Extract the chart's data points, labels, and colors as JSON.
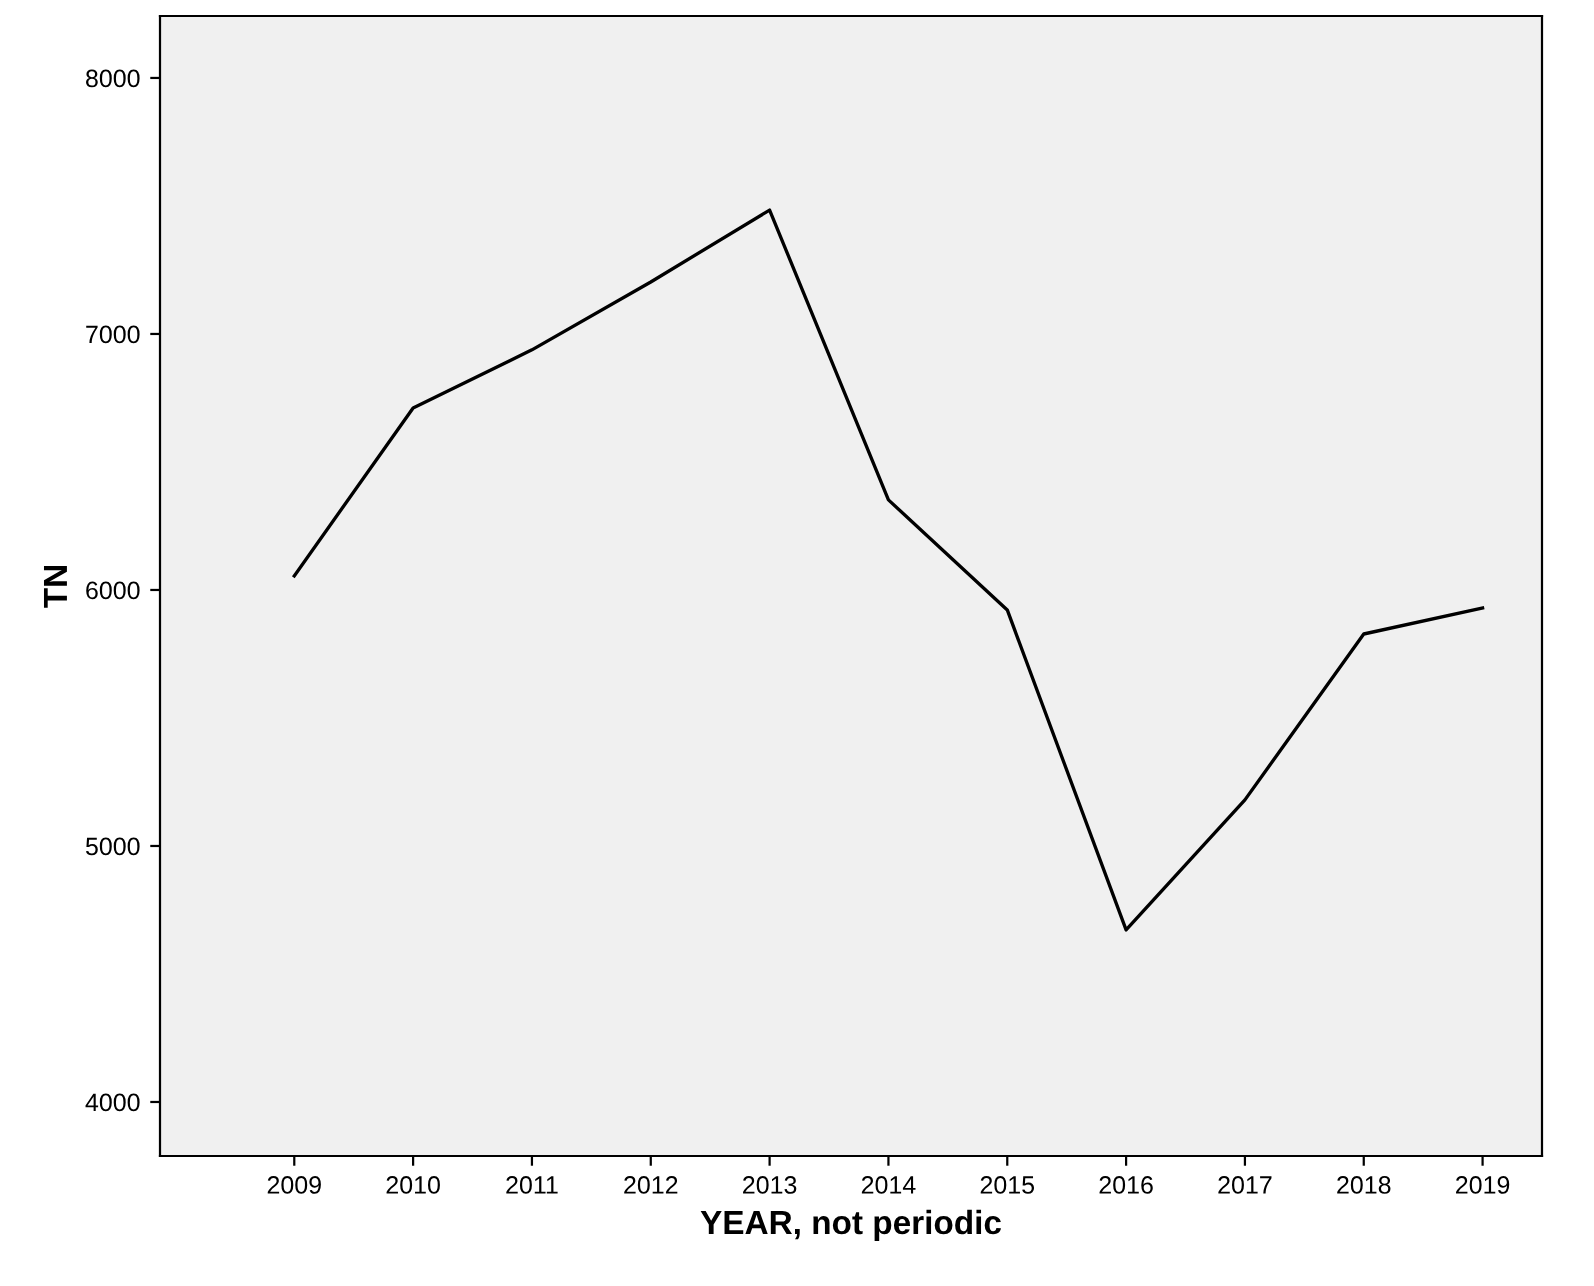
{
  "chart_data": {
    "type": "line",
    "xlabel": "YEAR, not periodic",
    "ylabel": "TN",
    "x": [
      2009,
      2010,
      2011,
      2012,
      2013,
      2014,
      2015,
      2016,
      2017,
      2018,
      2019
    ],
    "series": [
      {
        "color": "#000000",
        "values": [
          6055,
          6711,
          6938,
          7203,
          7484,
          6352,
          5922,
          4672,
          5180,
          5828,
          5930
        ]
      }
    ],
    "xlim": [
      2007.87,
      2019.5
    ],
    "xticks": [
      2009,
      2010,
      2011,
      2012,
      2013,
      2014,
      2015,
      2016,
      2017,
      2018,
      2019
    ],
    "ylim": [
      3789,
      8242
    ],
    "yticks": [
      4000,
      5000,
      6000,
      7000,
      8000
    ],
    "grid": false,
    "legend": false
  }
}
